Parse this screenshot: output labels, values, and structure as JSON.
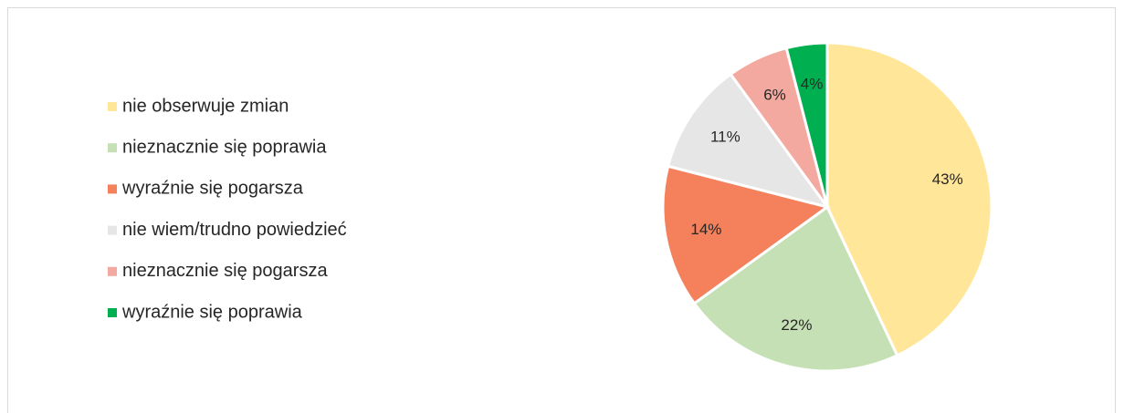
{
  "chart_data": {
    "type": "pie",
    "categories": [
      "nie obserwuje zmian",
      "nieznacznie się poprawia",
      "wyraźnie się pogarsza",
      "nie wiem/trudno powiedzieć",
      "nieznacznie się pogarsza",
      "wyraźnie się poprawia"
    ],
    "values": [
      43,
      22,
      14,
      11,
      6,
      4
    ],
    "value_labels": [
      "43%",
      "22%",
      "14%",
      "11%",
      "6%",
      "4%"
    ],
    "colors": [
      "#FFE699",
      "#C5E0B4",
      "#F4805C",
      "#E7E6E6",
      "#F4A9A0",
      "#00B050"
    ],
    "legend": "left"
  }
}
